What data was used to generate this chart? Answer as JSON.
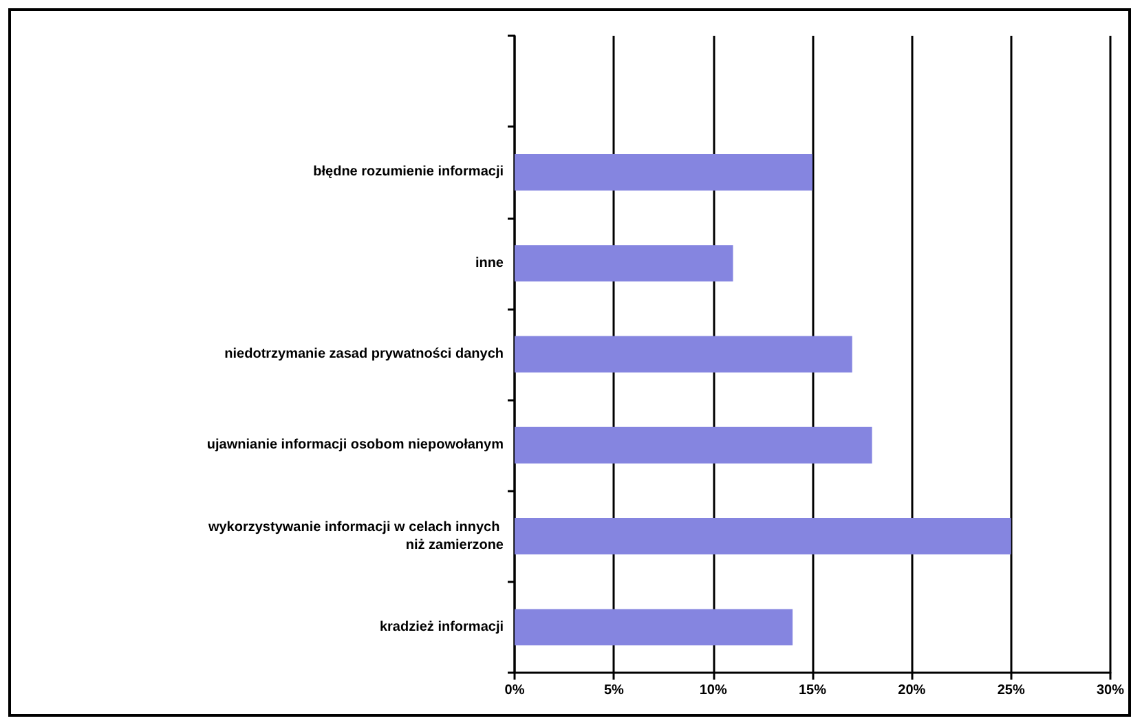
{
  "chart_data": {
    "type": "bar",
    "orientation": "horizontal",
    "categories": [
      null,
      "błędne rozumienie informacji",
      "inne",
      "niedotrzymanie zasad prywatności danych",
      "ujawnianie informacji osobom niepowołanym",
      "wykorzystywanie informacji w celach innych niż zamierzone",
      "kradzież informacji"
    ],
    "values": [
      null,
      15,
      11,
      17,
      18,
      25,
      14
    ],
    "color": "#8585e0",
    "xlim": [
      0,
      30
    ],
    "xticks": [
      {
        "value": 0,
        "label": "0%"
      },
      {
        "value": 5,
        "label": "5%"
      },
      {
        "value": 10,
        "label": "10%"
      },
      {
        "value": 15,
        "label": "15%"
      },
      {
        "value": 20,
        "label": "20%"
      },
      {
        "value": 25,
        "label": "25%"
      },
      {
        "value": 30,
        "label": "30%"
      }
    ],
    "grid": "x"
  }
}
